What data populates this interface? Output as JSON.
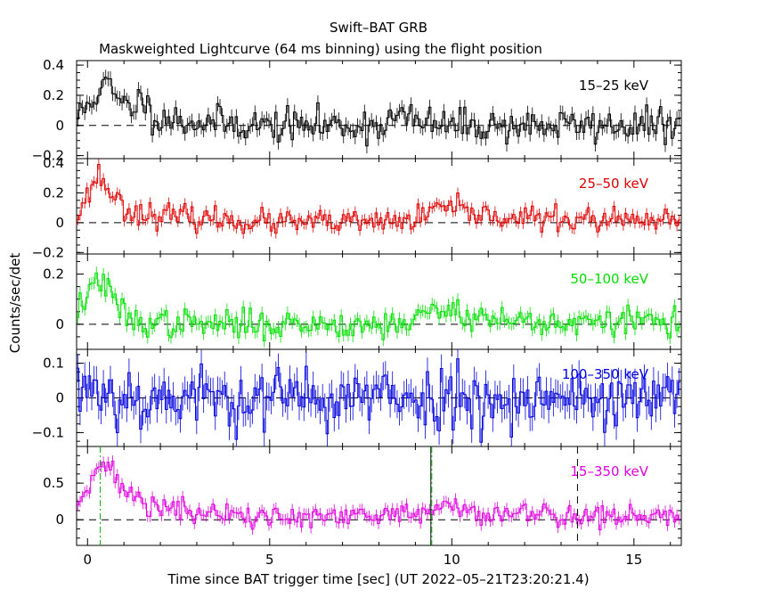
{
  "chart_data": {
    "type": "line",
    "title": "Swift–BAT GRB",
    "subtitle": "Maskweighted Lightcurve (64 ms binning) using the flight position",
    "xlabel": "Time since BAT trigger time [sec] (UT 2022–05–21T23:20:21.4)",
    "ylabel": "Counts/sec/det",
    "xlim": [
      -0.3,
      16.3
    ],
    "xticks": [
      0,
      5,
      10,
      15
    ],
    "xtick_labels": [
      "0",
      "5",
      "10",
      "15"
    ],
    "bin_width_s": 0.064,
    "markers": {
      "green_dashdot": [
        0.35,
        9.45
      ],
      "black_vertical": [
        9.45
      ],
      "black_dashed": [
        13.45
      ]
    },
    "panels": [
      {
        "name": "15–25 keV",
        "color": "#000000",
        "ylim": [
          -0.22,
          0.43
        ],
        "yticks": [
          -0.2,
          0,
          0.2,
          0.4
        ],
        "ytick_labels": [
          "−0.2",
          "0",
          "0.2",
          "0.4"
        ],
        "profile": [
          [
            -0.3,
            0.05
          ],
          [
            0.0,
            0.13
          ],
          [
            0.2,
            0.2
          ],
          [
            0.4,
            0.27
          ],
          [
            0.6,
            0.25
          ],
          [
            0.9,
            0.14
          ],
          [
            1.2,
            0.12
          ],
          [
            1.5,
            0.2
          ],
          [
            1.7,
            0.08
          ],
          [
            2.5,
            0.03
          ],
          [
            5,
            0.0
          ],
          [
            8,
            0.0
          ],
          [
            8.6,
            0.07
          ],
          [
            9.0,
            0.02
          ],
          [
            10,
            0.0
          ],
          [
            16.3,
            0.0
          ]
        ],
        "noise": 0.055,
        "seed": 11
      },
      {
        "name": "25–50 keV",
        "color": "#e00000",
        "ylim": [
          -0.21,
          0.43
        ],
        "yticks": [
          -0.2,
          0,
          0.2,
          0.4
        ],
        "ytick_labels": [
          "−0.2",
          "0",
          "0.2",
          "0.4"
        ],
        "profile": [
          [
            -0.3,
            0.05
          ],
          [
            0.0,
            0.18
          ],
          [
            0.3,
            0.33
          ],
          [
            0.5,
            0.25
          ],
          [
            0.8,
            0.16
          ],
          [
            1.0,
            0.1
          ],
          [
            1.5,
            0.06
          ],
          [
            3,
            0.03
          ],
          [
            5,
            0.0
          ],
          [
            8,
            0.0
          ],
          [
            9.3,
            0.03
          ],
          [
            9.5,
            0.11
          ],
          [
            10.5,
            0.06
          ],
          [
            12,
            0.03
          ],
          [
            16.3,
            0.0
          ]
        ],
        "noise": 0.04,
        "seed": 23
      },
      {
        "name": "50–100 keV",
        "color": "#00e000",
        "ylim": [
          -0.1,
          0.28
        ],
        "yticks": [
          0,
          0.2
        ],
        "ytick_labels": [
          "0",
          "0.2"
        ],
        "profile": [
          [
            -0.3,
            0.05
          ],
          [
            0.0,
            0.12
          ],
          [
            0.3,
            0.19
          ],
          [
            0.6,
            0.12
          ],
          [
            0.9,
            0.06
          ],
          [
            1.2,
            0.01
          ],
          [
            3,
            0.0
          ],
          [
            8.5,
            0.0
          ],
          [
            9.5,
            0.05
          ],
          [
            10,
            0.06
          ],
          [
            11,
            0.02
          ],
          [
            14,
            0.0
          ],
          [
            15,
            0.02
          ],
          [
            16.3,
            0.01
          ]
        ],
        "noise": 0.028,
        "seed": 37
      },
      {
        "name": "100–350 keV",
        "color": "#0000e0",
        "ylim": [
          -0.14,
          0.14
        ],
        "yticks": [
          -0.1,
          0,
          0.1
        ],
        "ytick_labels": [
          "−0.1",
          "0",
          "0.1"
        ],
        "profile": [
          [
            -0.3,
            0.02
          ],
          [
            0.0,
            0.04
          ],
          [
            0.5,
            0.02
          ],
          [
            1.0,
            0.0
          ],
          [
            16.3,
            0.0
          ]
        ],
        "noise": 0.045,
        "seed": 53
      },
      {
        "name": "15–350 keV",
        "color": "#e000e0",
        "ylim": [
          -0.35,
          1.0
        ],
        "yticks": [
          0,
          0.5
        ],
        "ytick_labels": [
          "0",
          "0.5"
        ],
        "profile": [
          [
            -0.3,
            0.2
          ],
          [
            0.0,
            0.45
          ],
          [
            0.2,
            0.75
          ],
          [
            0.4,
            0.82
          ],
          [
            0.7,
            0.6
          ],
          [
            1.0,
            0.4
          ],
          [
            1.5,
            0.25
          ],
          [
            2.5,
            0.12
          ],
          [
            4,
            0.05
          ],
          [
            6,
            0.02
          ],
          [
            8,
            0.03
          ],
          [
            8.6,
            0.12
          ],
          [
            9.0,
            0.06
          ],
          [
            9.4,
            0.1
          ],
          [
            9.7,
            0.2
          ],
          [
            10.5,
            0.12
          ],
          [
            12,
            0.08
          ],
          [
            16.3,
            0.02
          ]
        ],
        "noise": 0.085,
        "seed": 71
      }
    ]
  }
}
